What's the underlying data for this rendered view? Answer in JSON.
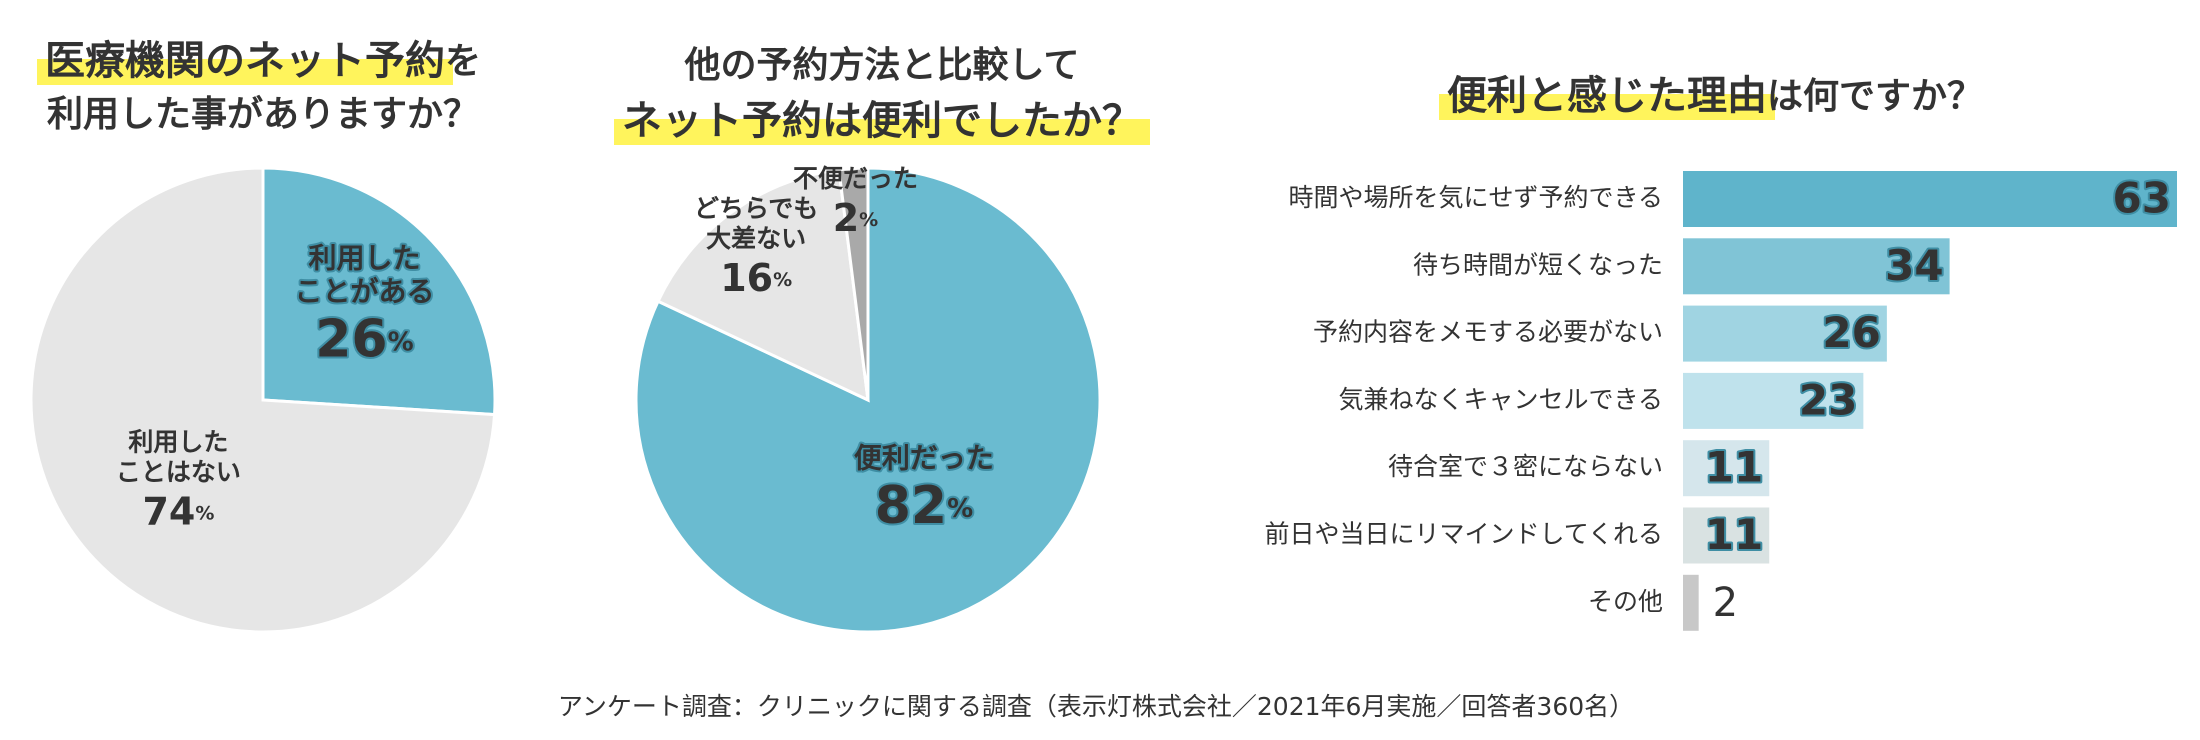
{
  "chart_data": [
    {
      "type": "pie",
      "title": [
        [
          "医療機関のネット予約",
          "を"
        ],
        [
          "利用した事がありますか？"
        ]
      ],
      "title_highlight": [
        [
          true,
          false
        ],
        [
          false
        ]
      ],
      "categories": [
        [
          "利用した",
          "ことがある"
        ],
        [
          "利用した",
          "ことはない"
        ]
      ],
      "values": [
        26,
        74
      ],
      "unit": "%",
      "colors": [
        "#6abbd0",
        "#e6e6e6"
      ],
      "label_colors": [
        "#ffffff",
        "#333333"
      ]
    },
    {
      "type": "pie",
      "title": [
        [
          "他の予約方法と比較して"
        ],
        [
          "ネット予約は便利でしたか？"
        ]
      ],
      "title_highlight": [
        [
          false
        ],
        [
          true
        ]
      ],
      "categories": [
        [
          "便利だった"
        ],
        [
          "どちらでも",
          "大差ない"
        ],
        [
          "不便だった"
        ]
      ],
      "values": [
        82,
        16,
        2
      ],
      "unit": "%",
      "colors": [
        "#6abbd0",
        "#e6e6e6",
        "#a9a9a9"
      ],
      "label_colors": [
        "#ffffff",
        "#333333",
        "#333333"
      ]
    },
    {
      "type": "hbar",
      "title": [
        [
          "便利と感じた理由",
          "は何ですか？"
        ]
      ],
      "title_highlight": [
        [
          true,
          false
        ]
      ],
      "categories": [
        "時間や場所を気にせず予約できる",
        "待ち時間が短くなった",
        "予約内容をメモする必要がない",
        "気兼ねなくキャンセルできる",
        "待合室で３密にならない",
        "前日や当日にリマインドしてくれる",
        "その他"
      ],
      "values": [
        63,
        34,
        26,
        23,
        11,
        11,
        2
      ],
      "colors": [
        "#5fb4cb",
        "#80c4d6",
        "#a0d4e2",
        "#bfe2ec",
        "#d5e6ec",
        "#d9e2e2",
        "#c8c8c8"
      ]
    }
  ],
  "source": "アンケート調査：クリニックに関する調査（表示灯株式会社／2021年6月実施／回答者360名）"
}
